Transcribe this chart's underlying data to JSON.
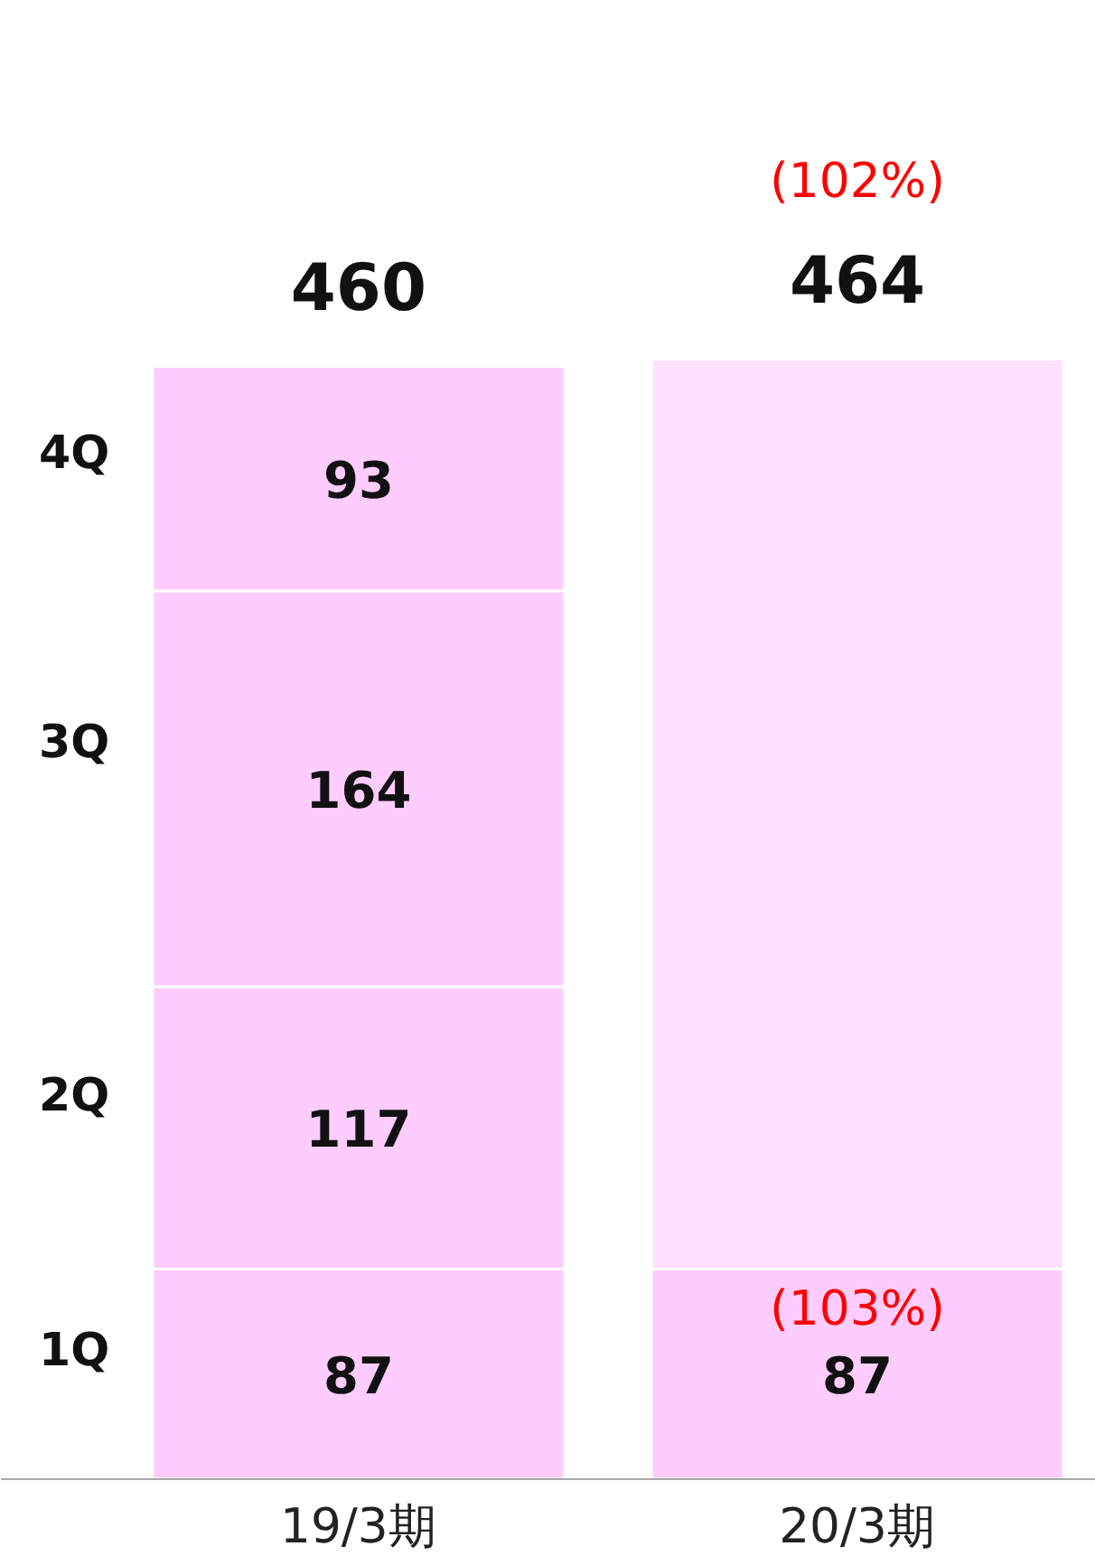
{
  "chart_data": {
    "type": "bar",
    "stacked": true,
    "categories": [
      "19/3期",
      "20/3期"
    ],
    "series": [
      {
        "name": "1Q",
        "color": "#ffccff",
        "values": [
          87,
          87
        ],
        "value_labels": [
          "87",
          "87"
        ]
      },
      {
        "name": "2Q",
        "color": "#ffccff",
        "values": [
          117,
          null
        ],
        "value_labels": [
          "117",
          null
        ]
      },
      {
        "name": "3Q",
        "color": "#ffccff",
        "values": [
          164,
          null
        ],
        "value_labels": [
          "164",
          null
        ]
      },
      {
        "name": "4Q",
        "color": "#ffccff",
        "values": [
          93,
          null
        ],
        "value_labels": [
          "93",
          null
        ]
      },
      {
        "color": "#ffe0ff",
        "values": [
          null,
          377
        ]
      }
    ],
    "totals": [
      "460",
      "464"
    ],
    "annotations": [
      "(102%)",
      "(103%)"
    ]
  }
}
